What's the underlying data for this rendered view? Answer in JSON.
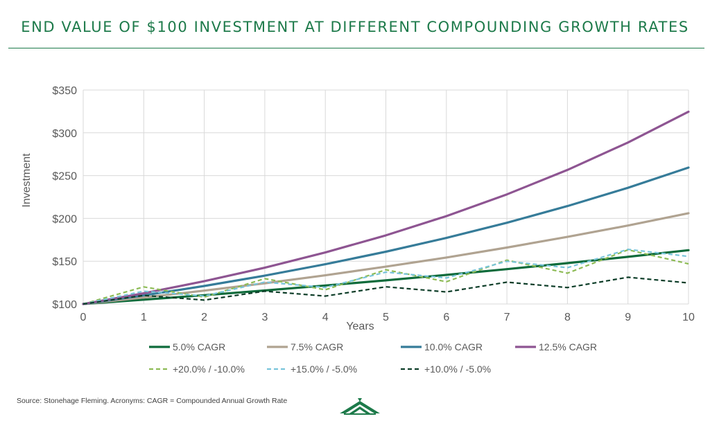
{
  "header": {
    "title": "END VALUE OF $100 INVESTMENT AT DIFFERENT COMPOUNDING GROWTH RATES"
  },
  "footer": {
    "source": "Source: Stonehage Fleming. Acronyms: CAGR = Compounded Annual Growth Rate"
  },
  "colors": {
    "title": "#1d7a4a",
    "grid": "#d9d9d9",
    "axis_text": "#595959"
  },
  "chart_data": {
    "type": "line",
    "xlabel": "Years",
    "ylabel": "Investment",
    "xlim": [
      0,
      10
    ],
    "ylim": [
      100,
      350
    ],
    "x_ticks": [
      0,
      1,
      2,
      3,
      4,
      5,
      6,
      7,
      8,
      9,
      10
    ],
    "y_ticks": [
      100,
      150,
      200,
      250,
      300,
      350
    ],
    "y_tick_labels": [
      "$100",
      "$150",
      "$200",
      "$250",
      "$300",
      "$350"
    ],
    "grid": true,
    "legend_position": "bottom",
    "x": [
      0,
      1,
      2,
      3,
      4,
      5,
      6,
      7,
      8,
      9,
      10
    ],
    "series": [
      {
        "name": "5.0% CAGR",
        "color": "#0e6b3b",
        "dash": "solid",
        "values": [
          100,
          105,
          110.3,
          115.8,
          121.6,
          127.6,
          134.0,
          140.7,
          147.7,
          155.1,
          162.9
        ]
      },
      {
        "name": "7.5% CAGR",
        "color": "#b0a391",
        "dash": "solid",
        "values": [
          100,
          107.5,
          115.6,
          124.2,
          133.5,
          143.6,
          154.3,
          165.9,
          178.4,
          191.7,
          206.1
        ]
      },
      {
        "name": "10.0% CAGR",
        "color": "#367c99",
        "dash": "solid",
        "values": [
          100,
          110,
          121.0,
          133.1,
          146.4,
          161.1,
          177.2,
          194.9,
          214.4,
          235.8,
          259.4
        ]
      },
      {
        "name": "12.5% CAGR",
        "color": "#8e5592",
        "dash": "solid",
        "values": [
          100,
          112.5,
          126.6,
          142.4,
          160.2,
          180.2,
          202.7,
          228.1,
          256.6,
          288.7,
          324.7
        ]
      },
      {
        "name": "+20.0% / -10.0%",
        "color": "#8dbb55",
        "dash": "dash",
        "values": [
          100,
          120,
          108,
          129.6,
          116.6,
          140.0,
          126.0,
          151.2,
          136.0,
          163.3,
          146.9
        ]
      },
      {
        "name": "+15.0% / -5.0%",
        "color": "#78c4da",
        "dash": "dash",
        "values": [
          100,
          115,
          109.3,
          125.6,
          119.3,
          137.2,
          130.4,
          149.9,
          142.4,
          163.8,
          155.6
        ]
      },
      {
        "name": "+10.0% / -5.0%",
        "color": "#0d3d28",
        "dash": "dash",
        "values": [
          100,
          110,
          104.5,
          115.0,
          109.2,
          120.1,
          114.1,
          125.5,
          119.2,
          131.2,
          124.6
        ]
      }
    ]
  }
}
